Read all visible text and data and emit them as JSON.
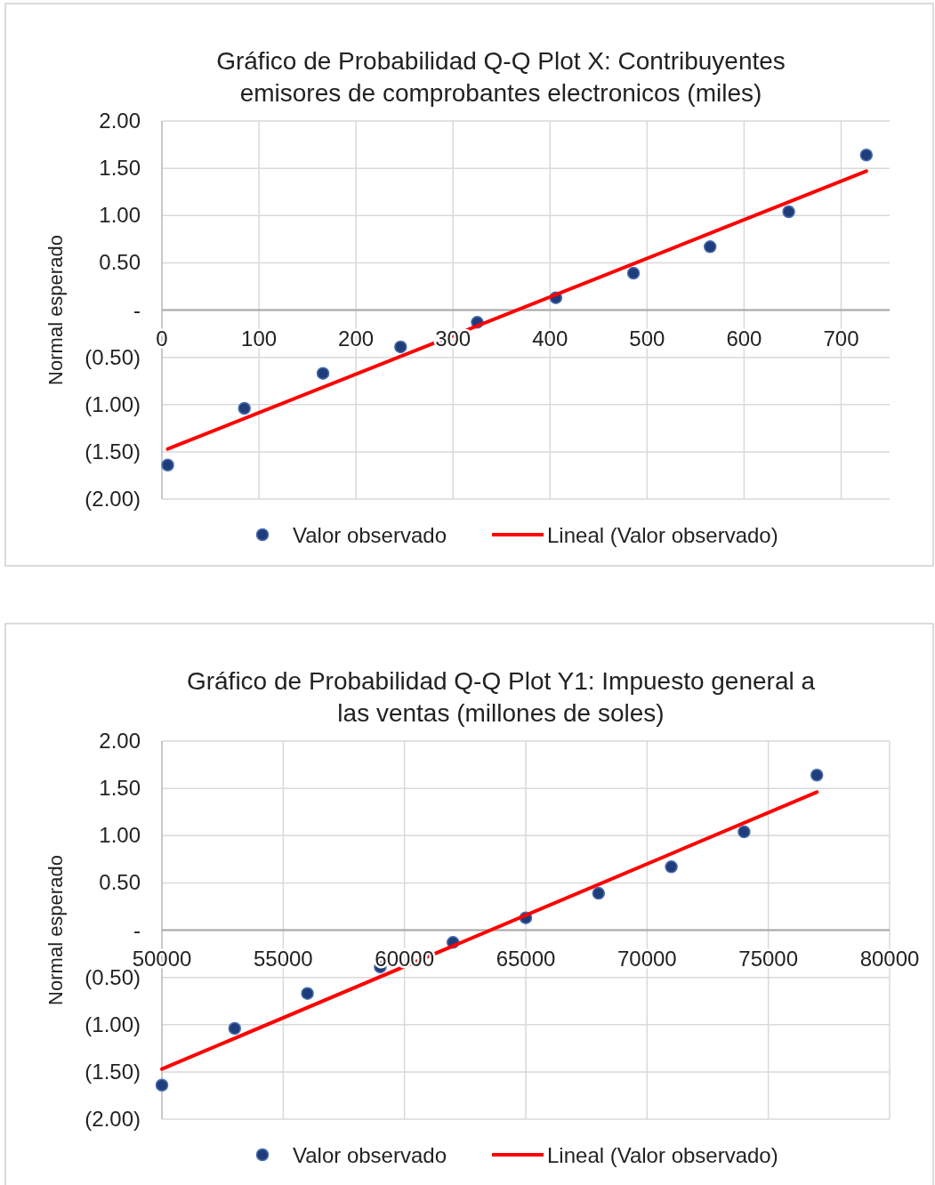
{
  "chart_data": [
    {
      "type": "scatter",
      "title": "Gráfico de Probabilidad Q-Q Plot X: Contribuyentes emisores de comprobantes electronicos (miles)",
      "ylabel": "Normal esperado",
      "xlim": [
        0,
        750
      ],
      "xticks": [
        0,
        100,
        200,
        300,
        400,
        500,
        600,
        700
      ],
      "ylim": [
        -2,
        2
      ],
      "yticks": [
        {
          "value": 2,
          "label": "2.00"
        },
        {
          "value": 1.5,
          "label": "1.50"
        },
        {
          "value": 1,
          "label": "1.00"
        },
        {
          "value": 0.5,
          "label": "0.50"
        },
        {
          "value": 0,
          "label": "-"
        },
        {
          "value": -0.5,
          "label": "(0.50)"
        },
        {
          "value": -1,
          "label": "(1.00)"
        },
        {
          "value": -1.5,
          "label": "(1.50)"
        },
        {
          "value": -2,
          "label": "(2.00)"
        }
      ],
      "grid": true,
      "legend": "bottom",
      "series": [
        {
          "name": "Valor observado",
          "marker": "circle",
          "color": "#1f3d7a",
          "x": [
            6,
            85,
            166,
            246,
            325,
            406,
            486,
            565,
            646,
            726
          ],
          "values": [
            -1.64,
            -1.04,
            -0.67,
            -0.39,
            -0.13,
            0.13,
            0.39,
            0.67,
            1.04,
            1.64
          ]
        },
        {
          "name": "Lineal (Valor observado)",
          "type": "line",
          "color": "#ff0000",
          "x": [
            6,
            726
          ],
          "values": [
            -1.47,
            1.47
          ]
        }
      ]
    },
    {
      "type": "scatter",
      "title": "Gráfico de Probabilidad Q-Q Plot Y1: Impuesto general a las ventas (millones de soles)",
      "ylabel": "Normal esperado",
      "xlim": [
        50000,
        80000
      ],
      "xticks": [
        50000,
        55000,
        60000,
        65000,
        70000,
        75000,
        80000
      ],
      "ylim": [
        -2,
        2
      ],
      "yticks": [
        {
          "value": 2,
          "label": "2.00"
        },
        {
          "value": 1.5,
          "label": "1.50"
        },
        {
          "value": 1,
          "label": "1.00"
        },
        {
          "value": 0.5,
          "label": "0.50"
        },
        {
          "value": 0,
          "label": "-"
        },
        {
          "value": -0.5,
          "label": "(0.50)"
        },
        {
          "value": -1,
          "label": "(1.00)"
        },
        {
          "value": -1.5,
          "label": "(1.50)"
        },
        {
          "value": -2,
          "label": "(2.00)"
        }
      ],
      "grid": true,
      "legend": "bottom",
      "series": [
        {
          "name": "Valor observado",
          "marker": "circle",
          "color": "#1f3d7a",
          "x": [
            50000,
            53000,
            56000,
            59000,
            62000,
            65000,
            68000,
            71000,
            74000,
            77000
          ],
          "values": [
            -1.64,
            -1.04,
            -0.67,
            -0.39,
            -0.13,
            0.13,
            0.39,
            0.67,
            1.04,
            1.64
          ]
        },
        {
          "name": "Lineal (Valor observado)",
          "type": "line",
          "color": "#ff0000",
          "x": [
            50000,
            77000
          ],
          "values": [
            -1.47,
            1.46
          ]
        }
      ]
    }
  ]
}
